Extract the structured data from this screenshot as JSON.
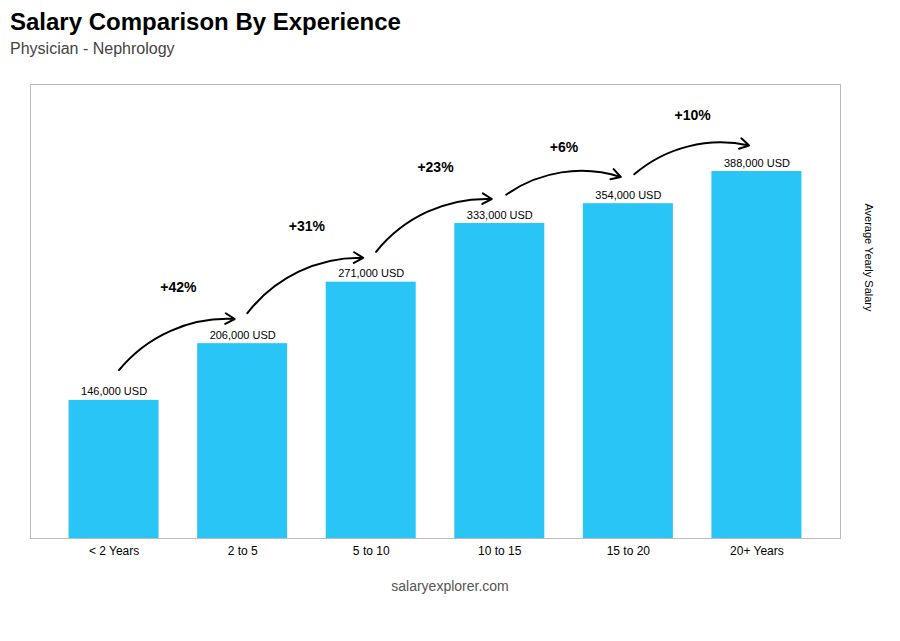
{
  "chart_data": {
    "type": "bar",
    "title": "Salary Comparison By Experience",
    "subtitle": "Physician - Nephrology",
    "categories": [
      "< 2 Years",
      "2 to 5",
      "5 to 10",
      "10 to 15",
      "15 to 20",
      "20+ Years"
    ],
    "values": [
      146000,
      206000,
      271000,
      333000,
      354000,
      388000
    ],
    "value_labels": [
      "146,000 USD",
      "206,000 USD",
      "271,000 USD",
      "333,000 USD",
      "354,000 USD",
      "388,000 USD"
    ],
    "data_labels": true,
    "annotations": [
      "+42%",
      "+31%",
      "+23%",
      "+6%",
      "+10%"
    ],
    "color": "#29c5f6",
    "ylabel": "Average Yearly Salary",
    "ylim": [
      0,
      480000
    ],
    "tick_labels": "x",
    "grid": false,
    "watermark": "salaryexplorer.com"
  }
}
